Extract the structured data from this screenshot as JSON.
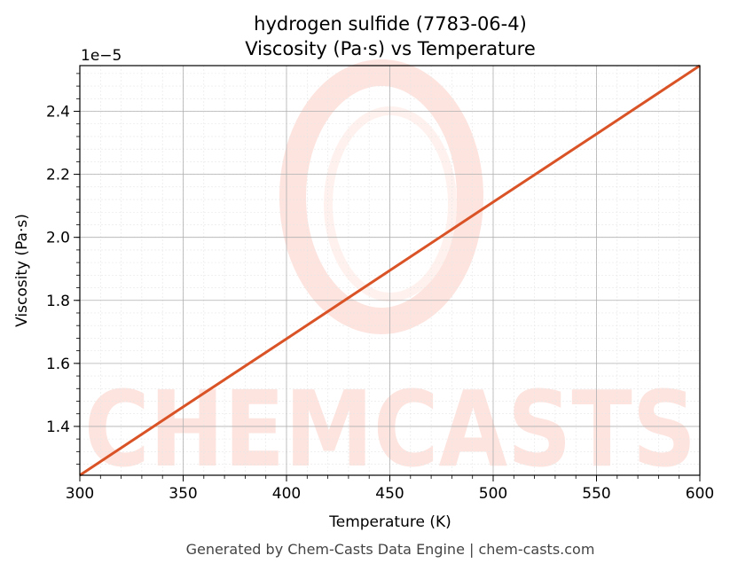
{
  "chart_data": {
    "type": "line",
    "title": "hydrogen sulfide (7783-06-4)",
    "subtitle": "Viscosity (Pa·s) vs Temperature",
    "xlabel": "Temperature (K)",
    "ylabel": "Viscosity (Pa·s)",
    "y_offset_label": "1e−5",
    "y_scale_factor": 1e-05,
    "xlim": [
      300,
      600
    ],
    "ylim": [
      1.245,
      2.545
    ],
    "x_ticks": [
      300,
      350,
      400,
      450,
      500,
      550,
      600
    ],
    "x_tick_labels": [
      "300",
      "350",
      "400",
      "450",
      "500",
      "550",
      "600"
    ],
    "y_ticks": [
      1.4,
      1.6,
      1.8,
      2.0,
      2.2,
      2.4
    ],
    "y_tick_labels": [
      "1.4",
      "1.6",
      "1.8",
      "2.0",
      "2.2",
      "2.4"
    ],
    "grid": "on",
    "series": [
      {
        "color": "#d95326",
        "x": [
          300,
          350,
          400,
          450,
          500,
          550,
          600
        ],
        "y": [
          1.245,
          1.462,
          1.678,
          1.895,
          2.112,
          2.328,
          2.545
        ]
      }
    ]
  },
  "watermark": {
    "text": "CHEMCASTS",
    "color": "#fde0da"
  },
  "footer": "Generated by Chem-Casts Data Engine | chem-casts.com"
}
